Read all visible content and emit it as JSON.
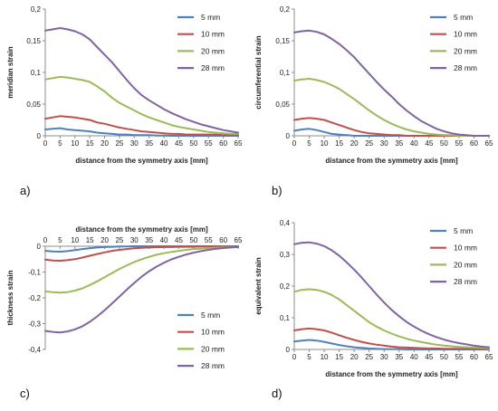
{
  "chart_data": [
    {
      "type": "line",
      "panel_label": "a)",
      "xlabel": "distance from the symmetry axis [mm]",
      "ylabel": "meridian strain",
      "x_tick_labels": [
        "0",
        "5",
        "10",
        "15",
        "20",
        "25",
        "30",
        "35",
        "40",
        "45",
        "50",
        "55",
        "60",
        "65"
      ],
      "y_tick_labels": [
        "0",
        "0,05",
        "0,1",
        "0,15",
        "0,2"
      ],
      "xlim": [
        0,
        65
      ],
      "ylim": [
        0,
        0.2
      ],
      "legend_position": "top-right",
      "x": [
        0,
        2.5,
        5,
        7.5,
        10,
        12.5,
        15,
        17.5,
        20,
        22.5,
        25,
        27.5,
        30,
        32.5,
        35,
        37.5,
        40,
        42.5,
        45,
        47.5,
        50,
        52.5,
        55,
        57.5,
        60,
        62.5,
        65
      ],
      "series": [
        {
          "name": "5 mm",
          "color": "#4f81bd",
          "values": [
            0.01,
            0.011,
            0.012,
            0.01,
            0.009,
            0.008,
            0.007,
            0.005,
            0.004,
            0.003,
            0.002,
            0.002,
            0.001,
            0.001,
            0.001,
            0.0005,
            0.0005,
            0,
            0,
            0,
            0,
            0,
            0,
            0,
            0,
            0,
            0
          ]
        },
        {
          "name": "10 mm",
          "color": "#c0504d",
          "values": [
            0.027,
            0.029,
            0.031,
            0.03,
            0.029,
            0.027,
            0.025,
            0.021,
            0.019,
            0.016,
            0.013,
            0.011,
            0.009,
            0.007,
            0.006,
            0.005,
            0.004,
            0.003,
            0.003,
            0.002,
            0.002,
            0.002,
            0.002,
            0.002,
            0.001,
            0.001,
            0.001
          ]
        },
        {
          "name": "20 mm",
          "color": "#9bbb59",
          "values": [
            0.089,
            0.091,
            0.093,
            0.092,
            0.09,
            0.088,
            0.085,
            0.078,
            0.07,
            0.06,
            0.052,
            0.046,
            0.04,
            0.034,
            0.029,
            0.025,
            0.021,
            0.017,
            0.014,
            0.012,
            0.01,
            0.008,
            0.006,
            0.005,
            0.004,
            0.003,
            0.003
          ]
        },
        {
          "name": "28 mm",
          "color": "#8064a2",
          "values": [
            0.166,
            0.168,
            0.17,
            0.168,
            0.165,
            0.16,
            0.152,
            0.14,
            0.128,
            0.116,
            0.102,
            0.088,
            0.075,
            0.064,
            0.056,
            0.049,
            0.042,
            0.036,
            0.031,
            0.026,
            0.022,
            0.018,
            0.015,
            0.012,
            0.009,
            0.007,
            0.005
          ]
        }
      ]
    },
    {
      "type": "line",
      "panel_label": "b)",
      "xlabel": "distance from the symmetry axis [mm]",
      "ylabel": "circumferential strain",
      "x_tick_labels": [
        "0",
        "5",
        "10",
        "15",
        "20",
        "25",
        "30",
        "35",
        "40",
        "45",
        "50",
        "55",
        "60",
        "65"
      ],
      "y_tick_labels": [
        "0",
        "0,05",
        "0,1",
        "0,15",
        "0,2"
      ],
      "xlim": [
        0,
        65
      ],
      "ylim": [
        0,
        0.2
      ],
      "legend_position": "top-right",
      "x": [
        0,
        2.5,
        5,
        7.5,
        10,
        12.5,
        15,
        17.5,
        20,
        22.5,
        25,
        27.5,
        30,
        32.5,
        35,
        37.5,
        40,
        42.5,
        45,
        47.5,
        50,
        52.5,
        55,
        57.5,
        60,
        62.5,
        65
      ],
      "series": [
        {
          "name": "5 mm",
          "color": "#4f81bd",
          "values": [
            0.008,
            0.01,
            0.011,
            0.009,
            0.006,
            0.003,
            0.002,
            0.001,
            0,
            0,
            0,
            0,
            0,
            0,
            0,
            0,
            0,
            0,
            0,
            0,
            0,
            0,
            0,
            0,
            0,
            0,
            0
          ]
        },
        {
          "name": "10 mm",
          "color": "#c0504d",
          "values": [
            0.025,
            0.027,
            0.028,
            0.027,
            0.025,
            0.021,
            0.017,
            0.013,
            0.009,
            0.006,
            0.004,
            0.003,
            0.002,
            0.001,
            0.001,
            0,
            0,
            0,
            0,
            0,
            0,
            0,
            0,
            0,
            0,
            0,
            0
          ]
        },
        {
          "name": "20 mm",
          "color": "#9bbb59",
          "values": [
            0.087,
            0.089,
            0.09,
            0.088,
            0.085,
            0.08,
            0.074,
            0.066,
            0.058,
            0.049,
            0.04,
            0.032,
            0.025,
            0.019,
            0.014,
            0.01,
            0.007,
            0.005,
            0.003,
            0.002,
            0.001,
            0.001,
            0,
            0,
            0,
            0,
            0
          ]
        },
        {
          "name": "28 mm",
          "color": "#8064a2",
          "values": [
            0.163,
            0.165,
            0.166,
            0.164,
            0.16,
            0.153,
            0.145,
            0.135,
            0.124,
            0.111,
            0.098,
            0.085,
            0.073,
            0.062,
            0.05,
            0.04,
            0.031,
            0.023,
            0.017,
            0.011,
            0.007,
            0.004,
            0.002,
            0.001,
            0,
            0,
            0
          ]
        }
      ]
    },
    {
      "type": "line",
      "panel_label": "c)",
      "xlabel": "distance from the symmetry axis [mm]",
      "ylabel": "thickness strain",
      "x_tick_labels": [
        "0",
        "5",
        "10",
        "15",
        "20",
        "25",
        "30",
        "35",
        "40",
        "45",
        "50",
        "55",
        "60",
        "65"
      ],
      "y_tick_labels": [
        "-0,4",
        "-0,3",
        "-0,2",
        "-0,1",
        "0"
      ],
      "xlim": [
        0,
        65
      ],
      "ylim": [
        -0.4,
        0
      ],
      "legend_position": "bottom-right",
      "x": [
        0,
        2.5,
        5,
        7.5,
        10,
        12.5,
        15,
        17.5,
        20,
        22.5,
        25,
        27.5,
        30,
        32.5,
        35,
        37.5,
        40,
        42.5,
        45,
        47.5,
        50,
        52.5,
        55,
        57.5,
        60,
        62.5,
        65
      ],
      "series": [
        {
          "name": "5 mm",
          "color": "#4f81bd",
          "values": [
            -0.018,
            -0.02,
            -0.021,
            -0.019,
            -0.015,
            -0.011,
            -0.008,
            -0.005,
            -0.003,
            -0.002,
            -0.001,
            -0.001,
            0,
            0,
            0,
            0,
            0,
            0,
            0,
            0,
            0,
            0,
            0,
            0,
            0,
            0,
            0
          ]
        },
        {
          "name": "10 mm",
          "color": "#c0504d",
          "values": [
            -0.052,
            -0.055,
            -0.056,
            -0.054,
            -0.05,
            -0.044,
            -0.037,
            -0.03,
            -0.024,
            -0.018,
            -0.014,
            -0.011,
            -0.008,
            -0.006,
            -0.005,
            -0.004,
            -0.003,
            -0.003,
            -0.002,
            -0.002,
            -0.002,
            -0.001,
            -0.001,
            -0.001,
            -0.001,
            -0.001,
            -0.001
          ]
        },
        {
          "name": "20 mm",
          "color": "#9bbb59",
          "values": [
            -0.175,
            -0.178,
            -0.18,
            -0.178,
            -0.172,
            -0.163,
            -0.15,
            -0.136,
            -0.12,
            -0.104,
            -0.088,
            -0.074,
            -0.061,
            -0.05,
            -0.041,
            -0.033,
            -0.027,
            -0.022,
            -0.018,
            -0.014,
            -0.011,
            -0.009,
            -0.007,
            -0.006,
            -0.005,
            -0.004,
            -0.003
          ]
        },
        {
          "name": "28 mm",
          "color": "#8064a2",
          "values": [
            -0.328,
            -0.332,
            -0.334,
            -0.33,
            -0.322,
            -0.31,
            -0.293,
            -0.272,
            -0.248,
            -0.222,
            -0.195,
            -0.168,
            -0.142,
            -0.118,
            -0.097,
            -0.079,
            -0.064,
            -0.051,
            -0.041,
            -0.032,
            -0.025,
            -0.019,
            -0.014,
            -0.01,
            -0.007,
            -0.005,
            -0.003
          ]
        }
      ]
    },
    {
      "type": "line",
      "panel_label": "d)",
      "xlabel": "distance from the symmetry axis [mm]",
      "ylabel": "equivalent strain",
      "x_tick_labels": [
        "0",
        "5",
        "10",
        "15",
        "20",
        "25",
        "30",
        "35",
        "40",
        "45",
        "50",
        "55",
        "60",
        "65"
      ],
      "y_tick_labels": [
        "0",
        "0,1",
        "0,2",
        "0,3",
        "0,4"
      ],
      "xlim": [
        0,
        65
      ],
      "ylim": [
        0,
        0.4
      ],
      "legend_position": "top-right",
      "x": [
        0,
        2.5,
        5,
        7.5,
        10,
        12.5,
        15,
        17.5,
        20,
        22.5,
        25,
        27.5,
        30,
        32.5,
        35,
        37.5,
        40,
        42.5,
        45,
        47.5,
        50,
        52.5,
        55,
        57.5,
        60,
        62.5,
        65
      ],
      "series": [
        {
          "name": "5 mm",
          "color": "#4f81bd",
          "values": [
            0.025,
            0.028,
            0.03,
            0.028,
            0.024,
            0.019,
            0.014,
            0.01,
            0.007,
            0.005,
            0.003,
            0.002,
            0.001,
            0.001,
            0.001,
            0,
            0,
            0,
            0,
            0,
            0,
            0,
            0,
            0,
            0,
            0,
            0
          ]
        },
        {
          "name": "10 mm",
          "color": "#c0504d",
          "values": [
            0.06,
            0.064,
            0.066,
            0.064,
            0.06,
            0.053,
            0.045,
            0.037,
            0.03,
            0.024,
            0.019,
            0.015,
            0.012,
            0.009,
            0.007,
            0.006,
            0.005,
            0.004,
            0.003,
            0.003,
            0.002,
            0.002,
            0.002,
            0.002,
            0.001,
            0.001,
            0.001
          ]
        },
        {
          "name": "20 mm",
          "color": "#9bbb59",
          "values": [
            0.182,
            0.188,
            0.19,
            0.188,
            0.182,
            0.172,
            0.158,
            0.14,
            0.122,
            0.104,
            0.086,
            0.072,
            0.06,
            0.05,
            0.041,
            0.034,
            0.028,
            0.023,
            0.019,
            0.015,
            0.012,
            0.01,
            0.008,
            0.007,
            0.006,
            0.005,
            0.004
          ]
        },
        {
          "name": "28 mm",
          "color": "#8064a2",
          "values": [
            0.332,
            0.337,
            0.338,
            0.334,
            0.326,
            0.313,
            0.296,
            0.275,
            0.252,
            0.227,
            0.2,
            0.173,
            0.148,
            0.125,
            0.105,
            0.087,
            0.072,
            0.059,
            0.048,
            0.039,
            0.031,
            0.025,
            0.02,
            0.016,
            0.012,
            0.009,
            0.007
          ]
        }
      ]
    }
  ]
}
